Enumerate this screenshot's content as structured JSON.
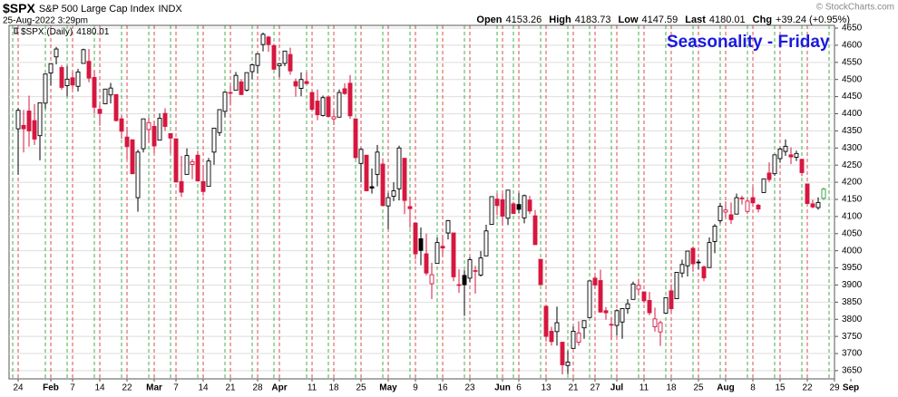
{
  "header": {
    "symbol": "$SPX",
    "name": "S&P 500 Large Cap Index",
    "exchange": "INDX",
    "datetime": "25-Aug-2022 3:29pm",
    "copyright": "© StockCharts.com",
    "quote": [
      {
        "label": "Open",
        "value": "4153.26"
      },
      {
        "label": "High",
        "value": "4183.73"
      },
      {
        "label": "Low",
        "value": "4147.59"
      },
      {
        "label": "Last",
        "value": "4180.01"
      },
      {
        "label": "Chg",
        "value": "+39.24 (+0.95%)"
      }
    ]
  },
  "chart_data": {
    "type": "candlestick",
    "title": "Seasonality - Friday",
    "legend": {
      "name": "$SPX (Daily)",
      "value": "4180.01"
    },
    "up_color": "#000000",
    "down_color": "#d6173f",
    "current_color": "#2e9e3a",
    "week_start_color": "#d62020",
    "week_end_color": "#1e9a1e",
    "grid": true,
    "categories": [
      "Jan 24",
      "Jan 25",
      "Jan 26",
      "Jan 27",
      "Jan 28",
      "Jan 31",
      "Feb 1",
      "Feb 2",
      "Feb 3",
      "Feb 4",
      "Feb 7",
      "Feb 8",
      "Feb 9",
      "Feb 10",
      "Feb 11",
      "Feb 14",
      "Feb 15",
      "Feb 16",
      "Feb 17",
      "Feb 18",
      "Feb 22",
      "Feb 23",
      "Feb 24",
      "Feb 25",
      "Feb 28",
      "Mar 1",
      "Mar 2",
      "Mar 3",
      "Mar 4",
      "Mar 7",
      "Mar 8",
      "Mar 9",
      "Mar 10",
      "Mar 11",
      "Mar 14",
      "Mar 15",
      "Mar 16",
      "Mar 17",
      "Mar 18",
      "Mar 21",
      "Mar 22",
      "Mar 23",
      "Mar 24",
      "Mar 25",
      "Mar 28",
      "Mar 29",
      "Mar 30",
      "Mar 31",
      "Apr 1",
      "Apr 4",
      "Apr 5",
      "Apr 6",
      "Apr 7",
      "Apr 8",
      "Apr 11",
      "Apr 12",
      "Apr 13",
      "Apr 14",
      "Apr 18",
      "Apr 19",
      "Apr 20",
      "Apr 21",
      "Apr 22",
      "Apr 25",
      "Apr 26",
      "Apr 27",
      "Apr 28",
      "Apr 29",
      "May 2",
      "May 3",
      "May 4",
      "May 5",
      "May 6",
      "May 9",
      "May 10",
      "May 11",
      "May 12",
      "May 13",
      "May 16",
      "May 17",
      "May 18",
      "May 19",
      "May 20",
      "May 23",
      "May 24",
      "May 25",
      "May 26",
      "May 27",
      "May 31",
      "Jun 1",
      "Jun 2",
      "Jun 3",
      "Jun 6",
      "Jun 7",
      "Jun 8",
      "Jun 9",
      "Jun 10",
      "Jun 13",
      "Jun 14",
      "Jun 15",
      "Jun 16",
      "Jun 17",
      "Jun 21",
      "Jun 22",
      "Jun 23",
      "Jun 24",
      "Jun 27",
      "Jun 28",
      "Jun 29",
      "Jun 30",
      "Jul 1",
      "Jul 5",
      "Jul 6",
      "Jul 7",
      "Jul 8",
      "Jul 11",
      "Jul 12",
      "Jul 13",
      "Jul 14",
      "Jul 15",
      "Jul 18",
      "Jul 19",
      "Jul 20",
      "Jul 21",
      "Jul 22",
      "Jul 25",
      "Jul 26",
      "Jul 27",
      "Jul 28",
      "Jul 29",
      "Aug 1",
      "Aug 2",
      "Aug 3",
      "Aug 4",
      "Aug 5",
      "Aug 8",
      "Aug 9",
      "Aug 10",
      "Aug 11",
      "Aug 12",
      "Aug 15",
      "Aug 16",
      "Aug 17",
      "Aug 18",
      "Aug 19",
      "Aug 22",
      "Aug 23",
      "Aug 24",
      "Aug 25"
    ],
    "open": [
      4356,
      4366,
      4408,
      4380,
      4336,
      4431,
      4519,
      4566,
      4535,
      4482,
      4505,
      4480,
      4547,
      4553,
      4506,
      4413,
      4429,
      4455,
      4456,
      4385,
      4332,
      4324,
      4155,
      4298,
      4354,
      4363,
      4323,
      4401,
      4342,
      4327,
      4202,
      4223,
      4252,
      4279,
      4202,
      4188,
      4288,
      4345,
      4407,
      4462,
      4469,
      4493,
      4469,
      4523,
      4541,
      4602,
      4624,
      4599,
      4540,
      4547,
      4573,
      4494,
      4474,
      4494,
      4462,
      4437,
      4395,
      4449,
      4385,
      4390,
      4473,
      4489,
      4385,
      4255,
      4279,
      4187,
      4223,
      4253,
      4131,
      4159,
      4181,
      4270,
      4129,
      4081,
      4035,
      3991,
      3904,
      3963,
      4013,
      4052,
      4052,
      3900,
      3928,
      3920,
      3942,
      3929,
      3985,
      4077,
      4151,
      4149,
      4095,
      4137,
      4135,
      4096,
      4148,
      4102,
      3975,
      3838,
      3765,
      3764,
      3733,
      3665,
      3715,
      3733,
      3775,
      3805,
      3920,
      3913,
      3825,
      3785,
      3782,
      3792,
      3831,
      3858,
      3888,
      3880,
      3855,
      3778,
      3763,
      3818,
      3883,
      3860,
      3935,
      3956,
      4007,
      3966,
      3953,
      3951,
      4027,
      4088,
      4113,
      4105,
      4107,
      4154,
      4115,
      4155,
      4133,
      4170,
      4227,
      4225,
      4269,
      4290,
      4280,
      4273,
      4267,
      4195,
      4137,
      4126,
      4153
    ],
    "high": [
      4417,
      4411,
      4453,
      4428,
      4432,
      4516,
      4546,
      4595,
      4542,
      4540,
      4521,
      4531,
      4590,
      4589,
      4527,
      4426,
      4472,
      4490,
      4456,
      4395,
      4362,
      4325,
      4295,
      4385,
      4388,
      4379,
      4401,
      4416,
      4343,
      4327,
      4277,
      4299,
      4268,
      4292,
      4248,
      4271,
      4358,
      4412,
      4465,
      4481,
      4522,
      4501,
      4520,
      4546,
      4575,
      4637,
      4627,
      4604,
      4548,
      4583,
      4593,
      4503,
      4521,
      4521,
      4464,
      4471,
      4453,
      4453,
      4411,
      4471,
      4489,
      4513,
      4386,
      4300,
      4279,
      4240,
      4309,
      4270,
      4169,
      4200,
      4307,
      4270,
      4158,
      4082,
      4068,
      4050,
      3965,
      4039,
      4046,
      4090,
      4052,
      3946,
      3943,
      3981,
      3956,
      3999,
      4076,
      4158,
      4168,
      4166,
      4177,
      4143,
      4169,
      4164,
      4160,
      4119,
      3975,
      3838,
      3778,
      3837,
      3733,
      3708,
      3779,
      3794,
      3796,
      3913,
      3928,
      3945,
      3836,
      3807,
      3829,
      3832,
      3859,
      3910,
      3918,
      3880,
      3880,
      3834,
      3796,
      3863,
      3902,
      3938,
      3974,
      3999,
      4013,
      3975,
      3957,
      4039,
      4078,
      4140,
      4144,
      4141,
      4167,
      4161,
      4152,
      4186,
      4137,
      4211,
      4258,
      4280,
      4301,
      4325,
      4302,
      4292,
      4267,
      4195,
      4149,
      4156,
      4184
    ],
    "low": [
      4222,
      4287,
      4304,
      4309,
      4264,
      4414,
      4483,
      4544,
      4470,
      4451,
      4471,
      4465,
      4547,
      4492,
      4401,
      4365,
      4429,
      4430,
      4377,
      4327,
      4267,
      4223,
      4114,
      4287,
      4315,
      4285,
      4322,
      4350,
      4285,
      4199,
      4157,
      4223,
      4209,
      4202,
      4161,
      4187,
      4251,
      4335,
      4390,
      4424,
      4469,
      4455,
      4465,
      4501,
      4517,
      4582,
      4581,
      4530,
      4507,
      4539,
      4514,
      4450,
      4451,
      4487,
      4408,
      4381,
      4392,
      4392,
      4367,
      4390,
      4455,
      4385,
      4268,
      4200,
      4175,
      4167,
      4188,
      4131,
      4063,
      4145,
      4147,
      4107,
      4067,
      3975,
      3958,
      3928,
      3859,
      3963,
      3983,
      4033,
      3911,
      3877,
      3810,
      3909,
      3875,
      3925,
      3985,
      4077,
      4104,
      4073,
      4075,
      4107,
      4109,
      4080,
      4107,
      4017,
      3900,
      3735,
      3723,
      3723,
      3639,
      3640,
      3715,
      3723,
      3743,
      3805,
      3889,
      3820,
      3799,
      3739,
      3752,
      3743,
      3816,
      3858,
      3870,
      3847,
      3812,
      3764,
      3722,
      3818,
      3818,
      3860,
      3922,
      3925,
      3939,
      3946,
      3911,
      3951,
      3993,
      4080,
      4097,
      4078,
      4107,
      4135,
      4108,
      4128,
      4112,
      4169,
      4201,
      4219,
      4257,
      4277,
      4253,
      4262,
      4218,
      4135,
      4124,
      4120,
      4148
    ],
    "close": [
      4410,
      4356,
      4350,
      4326,
      4432,
      4516,
      4546,
      4589,
      4477,
      4501,
      4484,
      4522,
      4587,
      4504,
      4419,
      4401,
      4472,
      4475,
      4380,
      4349,
      4304,
      4225,
      4288,
      4385,
      4374,
      4306,
      4387,
      4363,
      4329,
      4201,
      4171,
      4278,
      4260,
      4204,
      4173,
      4262,
      4358,
      4412,
      4463,
      4461,
      4512,
      4456,
      4520,
      4543,
      4575,
      4632,
      4602,
      4530,
      4546,
      4583,
      4525,
      4481,
      4500,
      4488,
      4413,
      4397,
      4447,
      4392,
      4391,
      4462,
      4459,
      4394,
      4272,
      4296,
      4175,
      4183,
      4288,
      4132,
      4155,
      4175,
      4300,
      4147,
      4123,
      3991,
      4001,
      3935,
      3930,
      4024,
      4008,
      4088,
      3924,
      3901,
      3901,
      3974,
      3941,
      3979,
      4058,
      4158,
      4132,
      4101,
      4177,
      4109,
      4121,
      4161,
      4116,
      4018,
      3901,
      3750,
      3735,
      3790,
      3667,
      3675,
      3765,
      3760,
      3796,
      3912,
      3900,
      3821,
      3819,
      3785,
      3825,
      3831,
      3845,
      3903,
      3899,
      3854,
      3819,
      3801,
      3790,
      3863,
      3831,
      3937,
      3960,
      3999,
      3962,
      3967,
      3921,
      4024,
      4072,
      4130,
      4119,
      4091,
      4155,
      4152,
      4145,
      4140,
      4122,
      4210,
      4208,
      4280,
      4297,
      4305,
      4274,
      4284,
      4228,
      4138,
      4128,
      4141,
      4180
    ],
    "xlim": [
      -1.67,
      150
    ],
    "xticks": [
      {
        "value": 0,
        "label": "24"
      },
      {
        "value": 6,
        "label": "Feb"
      },
      {
        "value": 10,
        "label": "7"
      },
      {
        "value": 15,
        "label": "14"
      },
      {
        "value": 20,
        "label": "22"
      },
      {
        "value": 25,
        "label": "Mar"
      },
      {
        "value": 29,
        "label": "7"
      },
      {
        "value": 34,
        "label": "14"
      },
      {
        "value": 39,
        "label": "21"
      },
      {
        "value": 44,
        "label": "28"
      },
      {
        "value": 48,
        "label": "Apr"
      },
      {
        "value": 54,
        "label": "11"
      },
      {
        "value": 58,
        "label": "18"
      },
      {
        "value": 63,
        "label": "25"
      },
      {
        "value": 68,
        "label": "May"
      },
      {
        "value": 73,
        "label": "9"
      },
      {
        "value": 78,
        "label": "16"
      },
      {
        "value": 83,
        "label": "23"
      },
      {
        "value": 89,
        "label": "Jun"
      },
      {
        "value": 92,
        "label": "6"
      },
      {
        "value": 97,
        "label": "13"
      },
      {
        "value": 102,
        "label": "21"
      },
      {
        "value": 106,
        "label": "27"
      },
      {
        "value": 110,
        "label": "Jul"
      },
      {
        "value": 115,
        "label": "11"
      },
      {
        "value": 120,
        "label": "18"
      },
      {
        "value": 125,
        "label": "25"
      },
      {
        "value": 130,
        "label": "Aug"
      },
      {
        "value": 135,
        "label": "8"
      },
      {
        "value": 140,
        "label": "15"
      },
      {
        "value": 145,
        "label": "22"
      },
      {
        "value": 150,
        "label": "29"
      },
      {
        "value": 153,
        "label": "Sep"
      }
    ],
    "ylim": [
      3626,
      4658
    ],
    "yticks": [
      3650,
      3700,
      3750,
      3800,
      3850,
      3900,
      3950,
      4000,
      4050,
      4100,
      4150,
      4200,
      4250,
      4300,
      4350,
      4400,
      4450,
      4500,
      4550,
      4600,
      4650
    ]
  }
}
